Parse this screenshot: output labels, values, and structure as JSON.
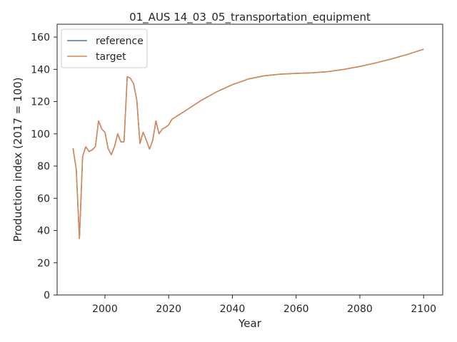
{
  "chart_data": {
    "type": "line",
    "title": "01_AUS 14_03_05_transportation_equipment",
    "xlabel": "Year",
    "ylabel": "Production index (2017 = 100)",
    "xlim": [
      1985,
      2106
    ],
    "ylim": [
      0,
      168
    ],
    "xticks": [
      2000,
      2020,
      2040,
      2060,
      2080,
      2100
    ],
    "yticks": [
      0,
      20,
      40,
      60,
      80,
      100,
      120,
      140,
      160
    ],
    "grid": false,
    "legend_position": "top-left",
    "series": [
      {
        "name": "reference",
        "color": "#4c72b0",
        "x": [
          1990,
          1991,
          1992,
          1993,
          1994,
          1995,
          1996,
          1997,
          1998,
          1999,
          2000,
          2001,
          2002,
          2003,
          2004,
          2005,
          2006,
          2007,
          2008,
          2009,
          2010,
          2011,
          2012,
          2013,
          2014,
          2015,
          2016,
          2017,
          2018,
          2019,
          2020,
          2021,
          2025,
          2030,
          2035,
          2040,
          2045,
          2050,
          2055,
          2060,
          2065,
          2070,
          2075,
          2080,
          2085,
          2090,
          2095,
          2100
        ],
        "y": [
          91,
          78,
          35,
          86,
          92,
          89,
          90,
          92,
          108,
          103,
          101,
          91,
          87,
          92,
          100,
          95,
          95,
          135.5,
          134.5,
          131,
          121,
          94,
          101,
          96,
          90.5,
          96,
          108,
          100,
          103,
          104,
          105.5,
          109,
          114,
          120.5,
          126,
          130.5,
          134,
          136,
          137,
          137.5,
          137.8,
          138.6,
          140,
          141.8,
          144,
          146.5,
          149.3,
          152.5
        ]
      },
      {
        "name": "target",
        "color": "#dd8452",
        "x": [
          1990,
          1991,
          1992,
          1993,
          1994,
          1995,
          1996,
          1997,
          1998,
          1999,
          2000,
          2001,
          2002,
          2003,
          2004,
          2005,
          2006,
          2007,
          2008,
          2009,
          2010,
          2011,
          2012,
          2013,
          2014,
          2015,
          2016,
          2017,
          2018,
          2019,
          2020,
          2021,
          2025,
          2030,
          2035,
          2040,
          2045,
          2050,
          2055,
          2060,
          2065,
          2070,
          2075,
          2080,
          2085,
          2090,
          2095,
          2100
        ],
        "y": [
          91,
          78,
          35,
          86,
          92,
          89,
          90,
          92,
          108,
          103,
          101,
          91,
          87,
          92,
          100,
          95,
          95,
          135.5,
          134.5,
          131,
          121,
          94,
          101,
          96,
          90.5,
          96,
          108,
          100,
          103,
          104,
          105.5,
          109,
          114,
          120.5,
          126,
          130.5,
          134,
          136,
          137,
          137.5,
          137.8,
          138.6,
          140,
          141.8,
          144,
          146.5,
          149.3,
          152.5
        ]
      }
    ]
  }
}
